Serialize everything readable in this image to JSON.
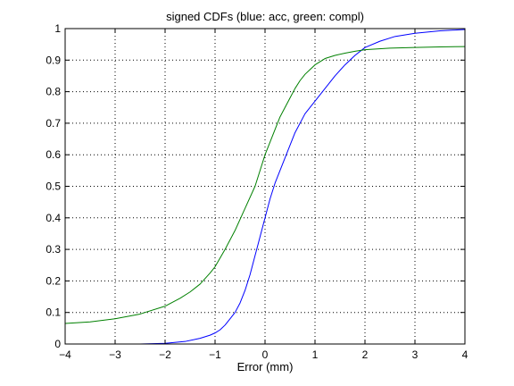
{
  "chart_data": {
    "type": "line",
    "title": "signed CDFs (blue: acc, green: compl)",
    "xlabel": "Error (mm)",
    "ylabel": "",
    "xlim": [
      -4,
      4
    ],
    "ylim": [
      0,
      1
    ],
    "xticks": [
      -4,
      -3,
      -2,
      -1,
      0,
      1,
      2,
      3,
      4
    ],
    "yticks": [
      0,
      0.1,
      0.2,
      0.3,
      0.4,
      0.5,
      0.6,
      0.7,
      0.8,
      0.9,
      1
    ],
    "xtick_labels": [
      "−4",
      "−3",
      "−2",
      "−1",
      "0",
      "1",
      "2",
      "3",
      "4"
    ],
    "ytick_labels": [
      "0",
      "0.1",
      "0.2",
      "0.3",
      "0.4",
      "0.5",
      "0.6",
      "0.7",
      "0.8",
      "0.9",
      "1"
    ],
    "grid": true,
    "series": [
      {
        "color": "#0000ff",
        "x": [
          -4,
          -3,
          -2.5,
          -2,
          -1.6,
          -1.3,
          -1.1,
          -1,
          -0.9,
          -0.8,
          -0.7,
          -0.6,
          -0.5,
          -0.4,
          -0.3,
          -0.2,
          -0.1,
          0,
          0.1,
          0.2,
          0.3,
          0.4,
          0.5,
          0.6,
          0.8,
          1,
          1.2,
          1.4,
          1.6,
          1.8,
          2,
          2.3,
          2.6,
          3,
          3.5,
          4
        ],
        "y": [
          0,
          0,
          0,
          0.002,
          0.008,
          0.018,
          0.028,
          0.035,
          0.045,
          0.06,
          0.08,
          0.1,
          0.13,
          0.17,
          0.22,
          0.28,
          0.34,
          0.4,
          0.46,
          0.51,
          0.55,
          0.59,
          0.63,
          0.67,
          0.73,
          0.77,
          0.81,
          0.85,
          0.885,
          0.915,
          0.94,
          0.96,
          0.975,
          0.985,
          0.993,
          0.997
        ]
      },
      {
        "color": "#008000",
        "x": [
          -4,
          -3.5,
          -3,
          -2.5,
          -2,
          -1.7,
          -1.5,
          -1.3,
          -1.1,
          -1,
          -0.8,
          -0.6,
          -0.4,
          -0.2,
          -0.1,
          0,
          0.1,
          0.2,
          0.3,
          0.4,
          0.5,
          0.6,
          0.7,
          0.8,
          0.9,
          1,
          1.1,
          1.2,
          1.4,
          1.6,
          1.8,
          2,
          2.5,
          3,
          3.5,
          4
        ],
        "y": [
          0.065,
          0.07,
          0.08,
          0.095,
          0.12,
          0.145,
          0.165,
          0.19,
          0.225,
          0.245,
          0.3,
          0.36,
          0.43,
          0.5,
          0.55,
          0.6,
          0.64,
          0.68,
          0.72,
          0.75,
          0.78,
          0.81,
          0.835,
          0.855,
          0.87,
          0.885,
          0.895,
          0.905,
          0.915,
          0.922,
          0.928,
          0.933,
          0.938,
          0.94,
          0.942,
          0.943
        ]
      }
    ]
  }
}
